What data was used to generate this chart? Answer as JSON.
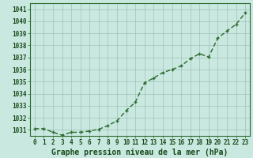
{
  "x": [
    0,
    1,
    2,
    3,
    4,
    5,
    6,
    7,
    8,
    9,
    10,
    11,
    12,
    13,
    14,
    15,
    16,
    17,
    18,
    19,
    20,
    21,
    22,
    23
  ],
  "y": [
    1031.1,
    1031.1,
    1030.8,
    1030.55,
    1030.8,
    1030.8,
    1030.9,
    1031.05,
    1031.35,
    1031.75,
    1032.6,
    1033.3,
    1034.9,
    1035.3,
    1035.75,
    1036.0,
    1036.3,
    1036.9,
    1037.3,
    1037.05,
    1038.6,
    1039.2,
    1039.75,
    1040.7
  ],
  "ylim_min": 1030.5,
  "ylim_max": 1041.5,
  "ytick_min": 1031,
  "ytick_max": 1041,
  "xticks": [
    0,
    1,
    2,
    3,
    4,
    5,
    6,
    7,
    8,
    9,
    10,
    11,
    12,
    13,
    14,
    15,
    16,
    17,
    18,
    19,
    20,
    21,
    22,
    23
  ],
  "xlabel": "Graphe pression niveau de la mer (hPa)",
  "line_color": "#2d6a2d",
  "marker": "+",
  "bg_color": "#c8e8e0",
  "grid_color": "#a0c0b8",
  "border_color": "#2d6a2d",
  "tick_label_color": "#1a4a1a",
  "xlabel_color": "#1a4a1a",
  "tick_fontsize": 5.5,
  "xlabel_fontsize": 7.0,
  "linewidth": 1.0,
  "markersize": 3.5
}
